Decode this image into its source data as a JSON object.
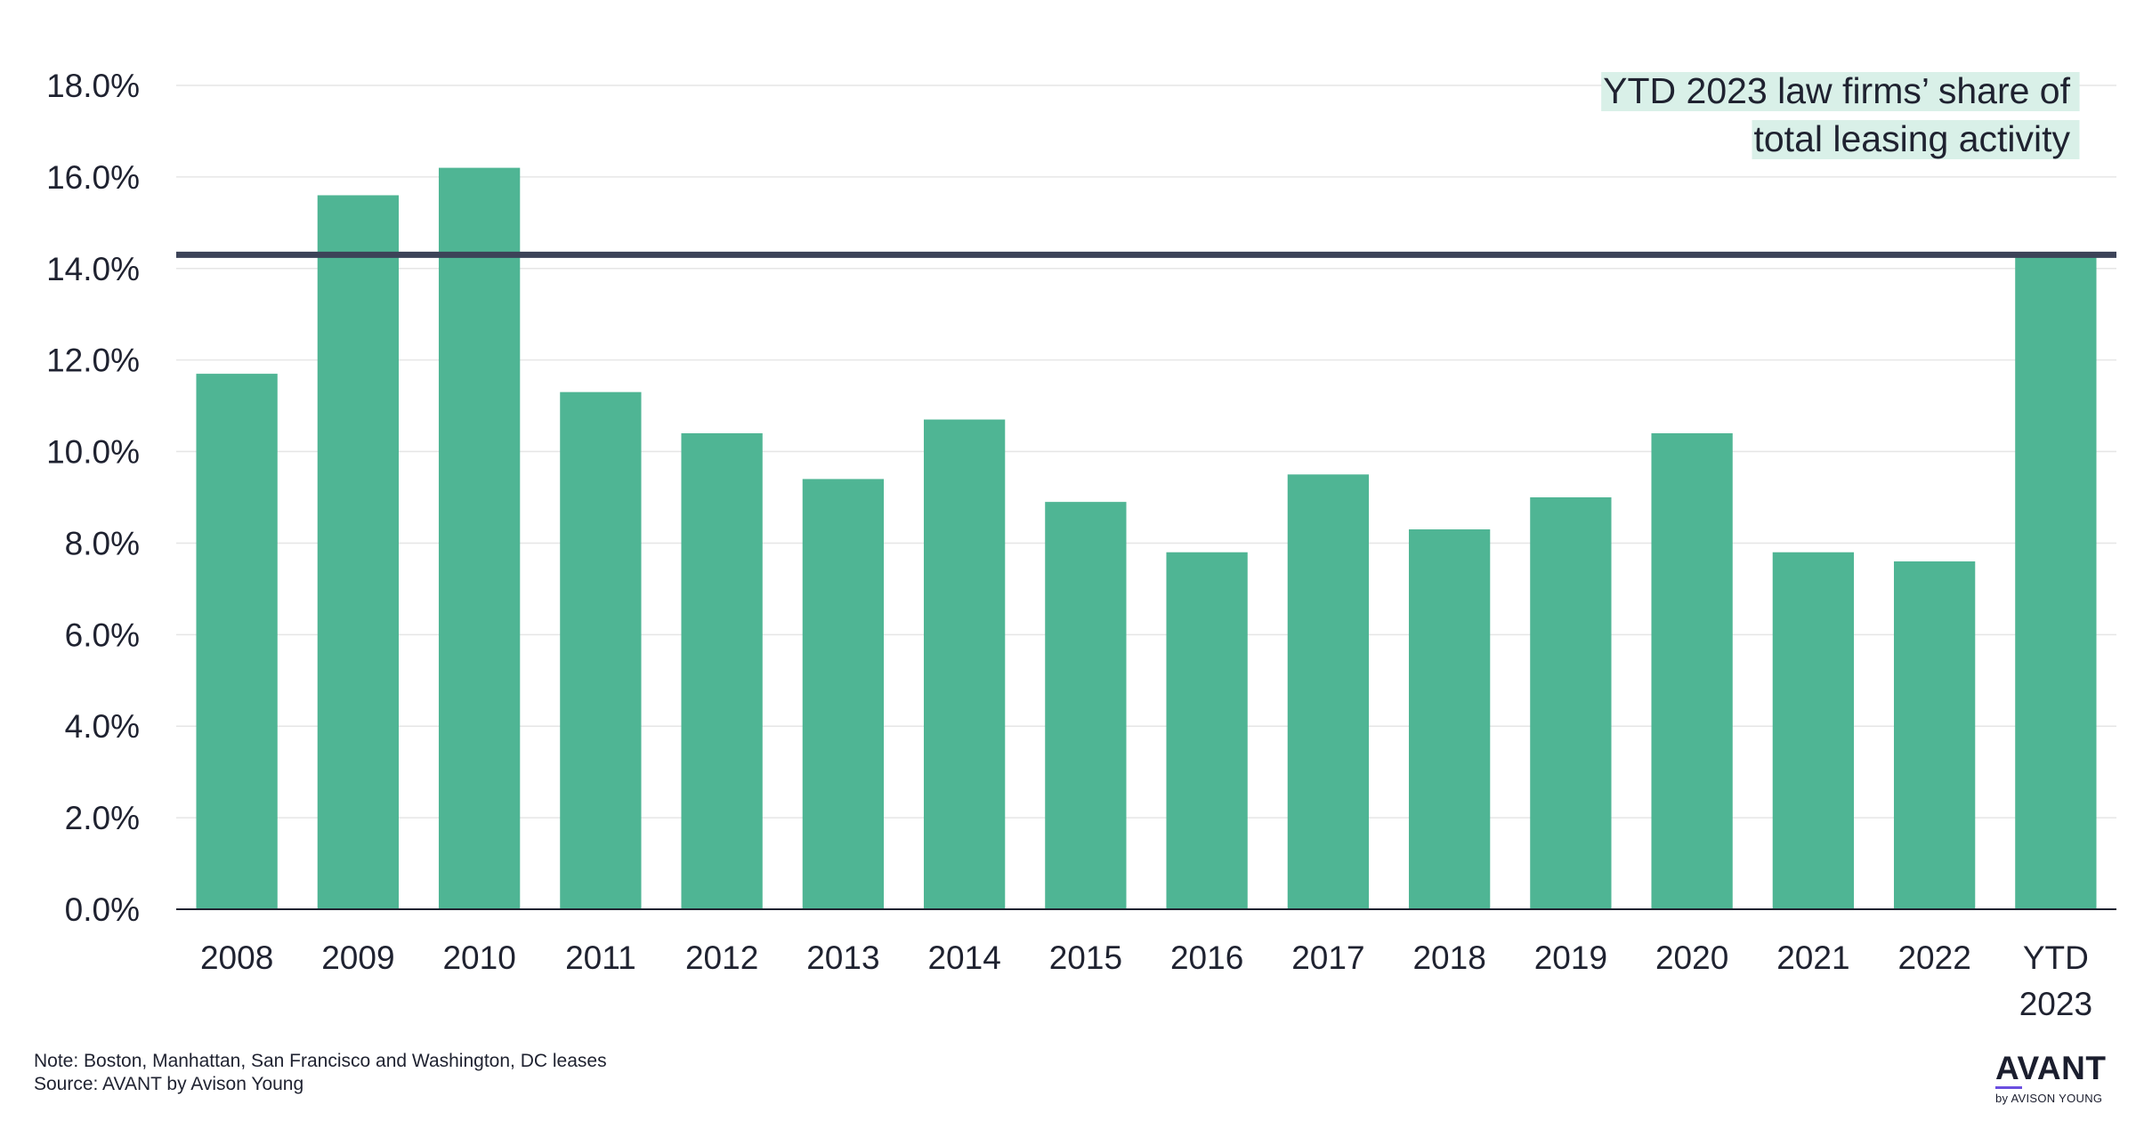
{
  "chart_data": {
    "type": "bar",
    "categories": [
      "2008",
      "2009",
      "2010",
      "2011",
      "2012",
      "2013",
      "2014",
      "2015",
      "2016",
      "2017",
      "2018",
      "2019",
      "2020",
      "2021",
      "2022",
      "YTD 2023"
    ],
    "values": [
      11.7,
      15.6,
      16.2,
      11.3,
      10.4,
      9.4,
      10.7,
      8.9,
      7.8,
      9.5,
      8.3,
      9.0,
      10.4,
      7.8,
      7.6,
      14.3
    ],
    "ylim": [
      0,
      18
    ],
    "yticks": [
      "0.0%",
      "2.0%",
      "4.0%",
      "6.0%",
      "8.0%",
      "10.0%",
      "12.0%",
      "14.0%",
      "16.0%",
      "18.0%"
    ],
    "grid": true,
    "bar_color": "#4fb594",
    "reference_line": {
      "value": 14.3,
      "color": "#3c4358",
      "label": [
        "YTD 2023 law firms’ share of",
        "total leasing activity"
      ],
      "label_background": "#d9f0e8"
    }
  },
  "footer": {
    "note": "Note: Boston, Manhattan, San Francisco and Washington, DC leases",
    "source": "Source: AVANT by Avison Young"
  },
  "logo": {
    "word": "AVANT",
    "sub": "by AVISON YOUNG",
    "accent_color": "#6b4fe0"
  }
}
